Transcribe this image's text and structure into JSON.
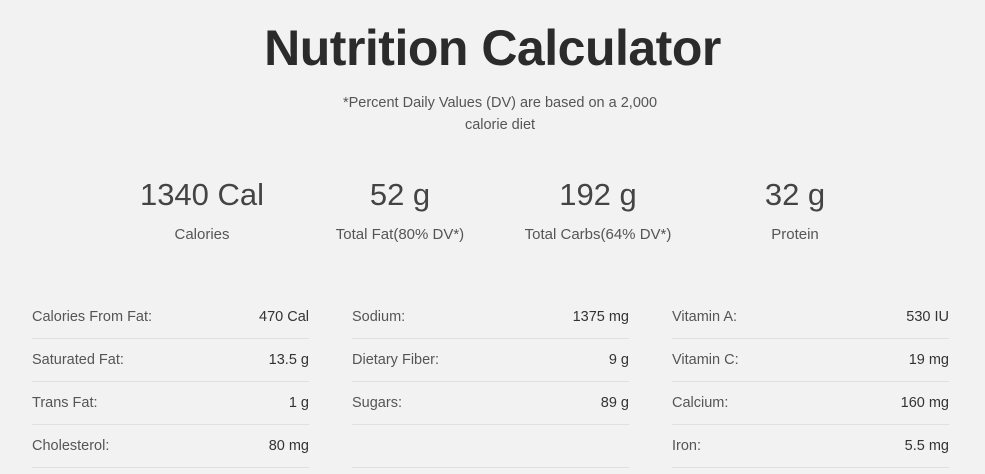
{
  "title": "Nutrition Calculator",
  "subtitle": "*Percent Daily Values (DV) are based on a 2,000 calorie diet",
  "summary": [
    {
      "value": "1340 Cal",
      "label": "Calories"
    },
    {
      "value": "52 g",
      "label": "Total Fat(80% DV*)"
    },
    {
      "value": "192 g",
      "label": "Total Carbs(64% DV*)"
    },
    {
      "value": "32 g",
      "label": "Protein"
    }
  ],
  "columns": [
    [
      {
        "label": "Calories From Fat:",
        "value": "470 Cal"
      },
      {
        "label": "Saturated Fat:",
        "value": "13.5 g"
      },
      {
        "label": "Trans Fat:",
        "value": "1 g"
      },
      {
        "label": "Cholesterol:",
        "value": "80 mg"
      }
    ],
    [
      {
        "label": "Sodium:",
        "value": "1375 mg"
      },
      {
        "label": "Dietary Fiber:",
        "value": "9 g"
      },
      {
        "label": "Sugars:",
        "value": "89 g"
      }
    ],
    [
      {
        "label": "Vitamin A:",
        "value": "530 IU"
      },
      {
        "label": "Vitamin C:",
        "value": "19 mg"
      },
      {
        "label": "Calcium:",
        "value": "160 mg"
      },
      {
        "label": "Iron:",
        "value": "5.5 mg"
      }
    ]
  ]
}
